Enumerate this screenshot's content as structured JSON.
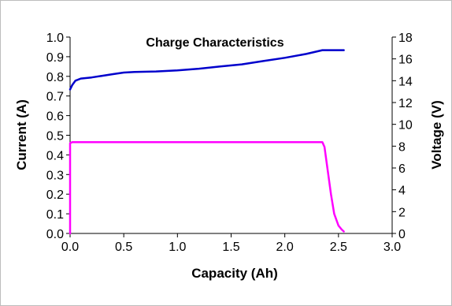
{
  "chart_data": {
    "type": "line",
    "title": "Charge Characteristics",
    "xlabel": "Capacity (Ah)",
    "ylabel_left": "Current (A)",
    "ylabel_right": "Voltage (V)",
    "xlim": [
      0,
      3.0
    ],
    "ylim_left": [
      0,
      1.0
    ],
    "ylim_right": [
      0,
      18
    ],
    "x_ticks": [
      "0.0",
      "0.5",
      "1.0",
      "1.5",
      "2.0",
      "2.5",
      "3.0"
    ],
    "y_left_ticks": [
      "0.0",
      "0.1",
      "0.2",
      "0.3",
      "0.4",
      "0.5",
      "0.6",
      "0.7",
      "0.8",
      "0.9",
      "1.0"
    ],
    "y_right_ticks": [
      "0",
      "2",
      "4",
      "6",
      "8",
      "10",
      "12",
      "14",
      "16",
      "18"
    ],
    "grid": false,
    "series": [
      {
        "axis": "right",
        "color": "#0000cc",
        "x": [
          0.0,
          0.02,
          0.05,
          0.1,
          0.2,
          0.3,
          0.4,
          0.5,
          0.6,
          0.8,
          1.0,
          1.2,
          1.4,
          1.6,
          1.8,
          2.0,
          2.2,
          2.35,
          2.45,
          2.55
        ],
        "y": [
          13.2,
          13.6,
          14.0,
          14.2,
          14.3,
          14.45,
          14.6,
          14.75,
          14.8,
          14.85,
          14.95,
          15.1,
          15.3,
          15.5,
          15.8,
          16.1,
          16.45,
          16.8,
          16.8,
          16.8
        ]
      },
      {
        "axis": "left",
        "color": "#ff00ff",
        "x": [
          0.0,
          0.0,
          0.02,
          0.5,
          1.0,
          1.5,
          2.0,
          2.35,
          2.37,
          2.4,
          2.43,
          2.46,
          2.5,
          2.53,
          2.55
        ],
        "y": [
          0.0,
          0.46,
          0.465,
          0.465,
          0.465,
          0.465,
          0.465,
          0.465,
          0.44,
          0.32,
          0.2,
          0.1,
          0.04,
          0.02,
          0.01
        ]
      }
    ]
  }
}
